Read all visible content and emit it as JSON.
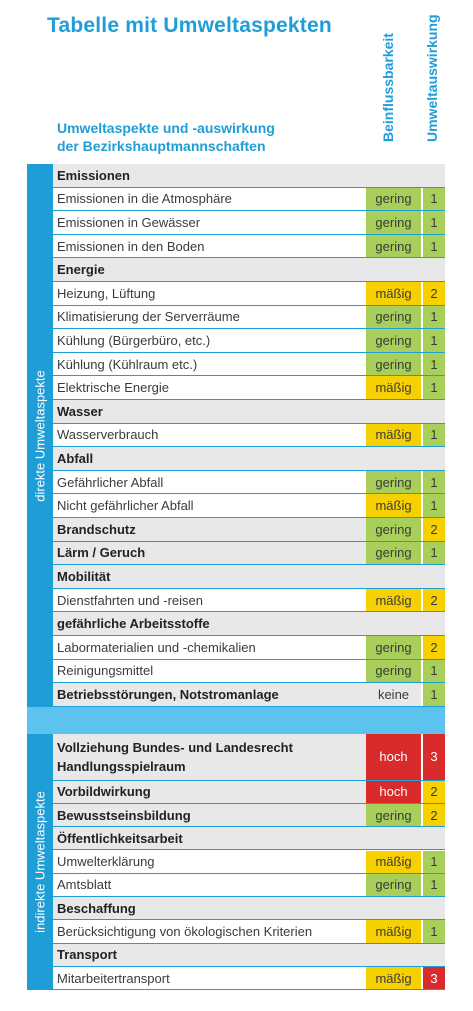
{
  "title": "Tabelle mit Umweltaspekten",
  "subtitle_line1": "Umweltaspekte und -auswirkung",
  "subtitle_line2": "der Bezirkshauptmannschaften",
  "col_influence": "Beinflussbarkeit",
  "col_impact": "Umweltauswirkung",
  "band_direct": "direkte Umweltaspekte",
  "band_indirect": "indirekte Umweltaspekte",
  "colors": {
    "blue": "#1f9dd6",
    "light_blue": "#5bc3ee",
    "gering": "#a8cf5a",
    "maessig": "#f6d000",
    "hoch": "#d92b2b",
    "keine": "#e8e8e8"
  },
  "direct_rows": [
    {
      "type": "header",
      "label": "Emissionen"
    },
    {
      "type": "item",
      "label": "Emissionen in die Atmosphäre",
      "infl": "gering",
      "impact": "1"
    },
    {
      "type": "item",
      "label": "Emissionen in Gewässer",
      "infl": "gering",
      "impact": "1"
    },
    {
      "type": "item",
      "label": "Emissionen in den Boden",
      "infl": "gering",
      "impact": "1"
    },
    {
      "type": "header",
      "label": "Energie"
    },
    {
      "type": "item",
      "label": "Heizung, Lüftung",
      "infl": "mäßig",
      "impact": "2"
    },
    {
      "type": "item",
      "label": "Klimatisierung der Serverräume",
      "infl": "gering",
      "impact": "1"
    },
    {
      "type": "item",
      "label": "Kühlung (Bürgerbüro, etc.)",
      "infl": "gering",
      "impact": "1"
    },
    {
      "type": "item",
      "label": "Kühlung (Kühlraum etc.)",
      "infl": "gering",
      "impact": "1"
    },
    {
      "type": "item",
      "label": "Elektrische Energie",
      "infl": "mäßig",
      "impact": "1"
    },
    {
      "type": "header",
      "label": "Wasser"
    },
    {
      "type": "item",
      "label": "Wasserverbrauch",
      "infl": "mäßig",
      "impact": "1"
    },
    {
      "type": "header",
      "label": "Abfall"
    },
    {
      "type": "item",
      "label": "Gefährlicher Abfall",
      "infl": "gering",
      "impact": "1"
    },
    {
      "type": "item",
      "label": "Nicht gefährlicher Abfall",
      "infl": "mäßig",
      "impact": "1"
    },
    {
      "type": "headerval",
      "label": "Brandschutz",
      "infl": "gering",
      "impact": "2"
    },
    {
      "type": "headerval",
      "label": "Lärm / Geruch",
      "infl": "gering",
      "impact": "1"
    },
    {
      "type": "header",
      "label": "Mobilität"
    },
    {
      "type": "item",
      "label": "Dienstfahrten und -reisen",
      "infl": "mäßig",
      "impact": "2"
    },
    {
      "type": "header",
      "label": "gefährliche Arbeitsstoffe"
    },
    {
      "type": "item",
      "label": "Labormaterialien und -chemikalien",
      "infl": "gering",
      "impact": "2"
    },
    {
      "type": "item",
      "label": "Reinigungsmittel",
      "infl": "gering",
      "impact": "1"
    },
    {
      "type": "headerval",
      "label": "Betriebsstörungen, Notstromanlage",
      "infl": "keine",
      "impact": "1"
    }
  ],
  "indirect_rows": [
    {
      "type": "tall",
      "label1": "Vollziehung Bundes- und Landesrecht",
      "label2": "Handlungsspielraum",
      "infl": "hoch",
      "impact": "3"
    },
    {
      "type": "headerval",
      "label": "Vorbildwirkung",
      "infl": "hoch",
      "impact": "2"
    },
    {
      "type": "headerval",
      "label": "Bewusstseinsbildung",
      "infl": "gering",
      "impact": "2"
    },
    {
      "type": "header",
      "label": "Öffentlichkeitsarbeit"
    },
    {
      "type": "item",
      "label": "Umwelterklärung",
      "infl": "mäßig",
      "impact": "1"
    },
    {
      "type": "item",
      "label": "Amtsblatt",
      "infl": "gering",
      "impact": "1"
    },
    {
      "type": "header",
      "label": "Beschaffung"
    },
    {
      "type": "item",
      "label": "Berücksichtigung von ökologischen Kriterien",
      "infl": "mäßig",
      "impact": "1"
    },
    {
      "type": "header",
      "label": "Transport"
    },
    {
      "type": "item",
      "label": "Mitarbeitertransport",
      "infl": "mäßig",
      "impact": "3"
    }
  ]
}
